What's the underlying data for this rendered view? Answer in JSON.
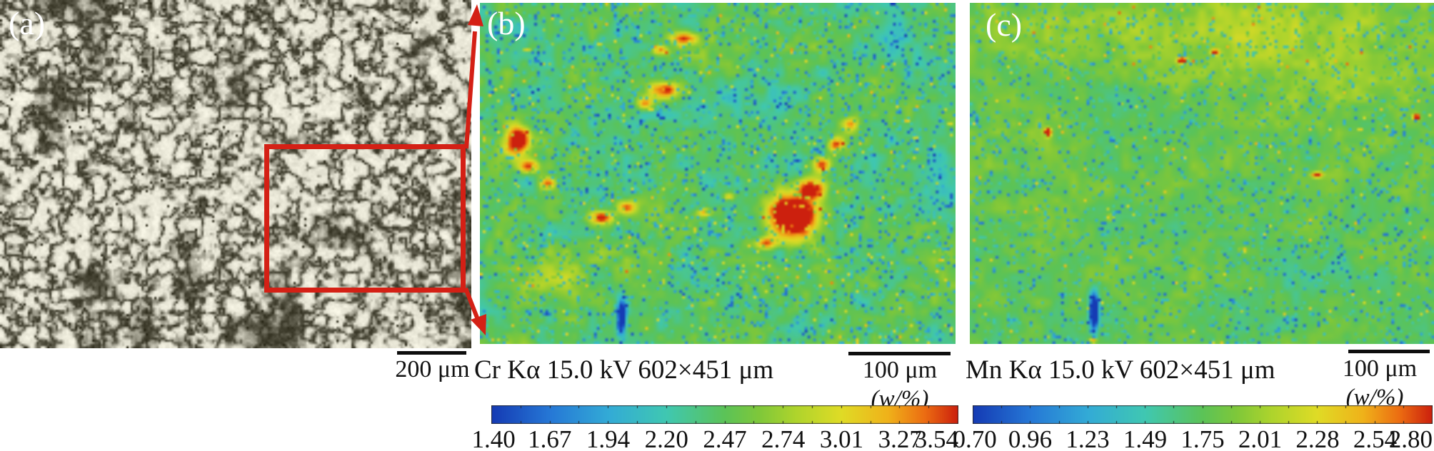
{
  "figure": {
    "annotation_color": "#d42015",
    "panels": [
      {
        "label": "(a)",
        "scale_bar": "200 μm"
      },
      {
        "label": "(b)",
        "caption": "Cr Kα 15.0 kV 602×451 μm",
        "scale_bar": "100 μm",
        "unit_label": "(w/%)",
        "colorbar_ticks": [
          "1.40",
          "1.67",
          "1.94",
          "2.20",
          "2.47",
          "2.74",
          "3.01",
          "3.27",
          "3.54"
        ]
      },
      {
        "label": "(c)",
        "caption": "Mn Kα 15.0 kV 602×451 μm",
        "scale_bar": "100 μm",
        "unit_label": "(w/%)",
        "colorbar_ticks": [
          "0.70",
          "0.96",
          "1.23",
          "1.49",
          "1.75",
          "2.01",
          "2.28",
          "2.54",
          "2.80"
        ]
      }
    ]
  },
  "chart_data": [
    {
      "type": "heatmap",
      "title": "Cr Kα 15.0 kV 602×451 μm",
      "element": "Cr",
      "beam_kv": 15.0,
      "map_size_um": "602×451",
      "unit": "w/%",
      "colormap": "jet",
      "scale_min": 1.4,
      "scale_max": 3.54,
      "colorbar_ticks": [
        1.4,
        1.67,
        1.94,
        2.2,
        2.47,
        2.74,
        3.01,
        3.27,
        3.54
      ]
    },
    {
      "type": "heatmap",
      "title": "Mn Kα 15.0 kV 602×451 μm",
      "element": "Mn",
      "beam_kv": 15.0,
      "map_size_um": "602×451",
      "unit": "w/%",
      "colormap": "jet",
      "scale_min": 0.7,
      "scale_max": 2.8,
      "colorbar_ticks": [
        0.7,
        0.96,
        1.23,
        1.49,
        1.75,
        2.01,
        2.28,
        2.54,
        2.8
      ]
    }
  ]
}
